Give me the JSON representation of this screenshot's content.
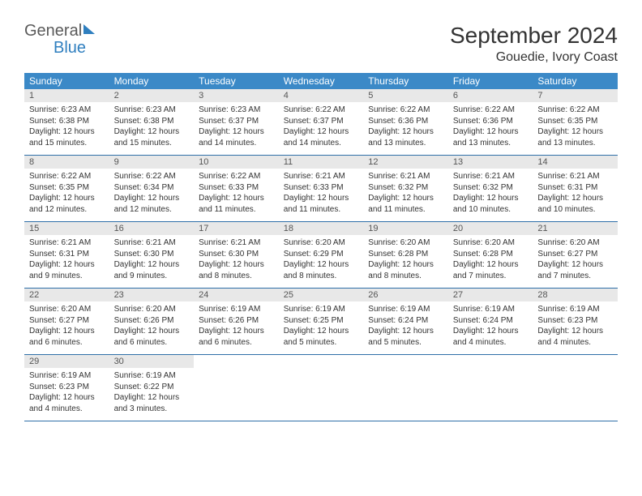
{
  "logo": {
    "text1": "General",
    "text2": "Blue"
  },
  "title": "September 2024",
  "location": "Gouedie, Ivory Coast",
  "colors": {
    "header_bg": "#3b89c7",
    "header_text": "#ffffff",
    "daynum_bg": "#e8e8e8",
    "week_border": "#2f6fa8",
    "body_text": "#333333",
    "logo_gray": "#5a5a5a",
    "logo_blue": "#2f7fbf"
  },
  "weekdays": [
    "Sunday",
    "Monday",
    "Tuesday",
    "Wednesday",
    "Thursday",
    "Friday",
    "Saturday"
  ],
  "days": [
    {
      "n": "1",
      "sr": "6:23 AM",
      "ss": "6:38 PM",
      "dl": "12 hours and 15 minutes."
    },
    {
      "n": "2",
      "sr": "6:23 AM",
      "ss": "6:38 PM",
      "dl": "12 hours and 15 minutes."
    },
    {
      "n": "3",
      "sr": "6:23 AM",
      "ss": "6:37 PM",
      "dl": "12 hours and 14 minutes."
    },
    {
      "n": "4",
      "sr": "6:22 AM",
      "ss": "6:37 PM",
      "dl": "12 hours and 14 minutes."
    },
    {
      "n": "5",
      "sr": "6:22 AM",
      "ss": "6:36 PM",
      "dl": "12 hours and 13 minutes."
    },
    {
      "n": "6",
      "sr": "6:22 AM",
      "ss": "6:36 PM",
      "dl": "12 hours and 13 minutes."
    },
    {
      "n": "7",
      "sr": "6:22 AM",
      "ss": "6:35 PM",
      "dl": "12 hours and 13 minutes."
    },
    {
      "n": "8",
      "sr": "6:22 AM",
      "ss": "6:35 PM",
      "dl": "12 hours and 12 minutes."
    },
    {
      "n": "9",
      "sr": "6:22 AM",
      "ss": "6:34 PM",
      "dl": "12 hours and 12 minutes."
    },
    {
      "n": "10",
      "sr": "6:22 AM",
      "ss": "6:33 PM",
      "dl": "12 hours and 11 minutes."
    },
    {
      "n": "11",
      "sr": "6:21 AM",
      "ss": "6:33 PM",
      "dl": "12 hours and 11 minutes."
    },
    {
      "n": "12",
      "sr": "6:21 AM",
      "ss": "6:32 PM",
      "dl": "12 hours and 11 minutes."
    },
    {
      "n": "13",
      "sr": "6:21 AM",
      "ss": "6:32 PM",
      "dl": "12 hours and 10 minutes."
    },
    {
      "n": "14",
      "sr": "6:21 AM",
      "ss": "6:31 PM",
      "dl": "12 hours and 10 minutes."
    },
    {
      "n": "15",
      "sr": "6:21 AM",
      "ss": "6:31 PM",
      "dl": "12 hours and 9 minutes."
    },
    {
      "n": "16",
      "sr": "6:21 AM",
      "ss": "6:30 PM",
      "dl": "12 hours and 9 minutes."
    },
    {
      "n": "17",
      "sr": "6:21 AM",
      "ss": "6:30 PM",
      "dl": "12 hours and 8 minutes."
    },
    {
      "n": "18",
      "sr": "6:20 AM",
      "ss": "6:29 PM",
      "dl": "12 hours and 8 minutes."
    },
    {
      "n": "19",
      "sr": "6:20 AM",
      "ss": "6:28 PM",
      "dl": "12 hours and 8 minutes."
    },
    {
      "n": "20",
      "sr": "6:20 AM",
      "ss": "6:28 PM",
      "dl": "12 hours and 7 minutes."
    },
    {
      "n": "21",
      "sr": "6:20 AM",
      "ss": "6:27 PM",
      "dl": "12 hours and 7 minutes."
    },
    {
      "n": "22",
      "sr": "6:20 AM",
      "ss": "6:27 PM",
      "dl": "12 hours and 6 minutes."
    },
    {
      "n": "23",
      "sr": "6:20 AM",
      "ss": "6:26 PM",
      "dl": "12 hours and 6 minutes."
    },
    {
      "n": "24",
      "sr": "6:19 AM",
      "ss": "6:26 PM",
      "dl": "12 hours and 6 minutes."
    },
    {
      "n": "25",
      "sr": "6:19 AM",
      "ss": "6:25 PM",
      "dl": "12 hours and 5 minutes."
    },
    {
      "n": "26",
      "sr": "6:19 AM",
      "ss": "6:24 PM",
      "dl": "12 hours and 5 minutes."
    },
    {
      "n": "27",
      "sr": "6:19 AM",
      "ss": "6:24 PM",
      "dl": "12 hours and 4 minutes."
    },
    {
      "n": "28",
      "sr": "6:19 AM",
      "ss": "6:23 PM",
      "dl": "12 hours and 4 minutes."
    },
    {
      "n": "29",
      "sr": "6:19 AM",
      "ss": "6:23 PM",
      "dl": "12 hours and 4 minutes."
    },
    {
      "n": "30",
      "sr": "6:19 AM",
      "ss": "6:22 PM",
      "dl": "12 hours and 3 minutes."
    }
  ],
  "labels": {
    "sunrise": "Sunrise:",
    "sunset": "Sunset:",
    "daylight": "Daylight:"
  }
}
